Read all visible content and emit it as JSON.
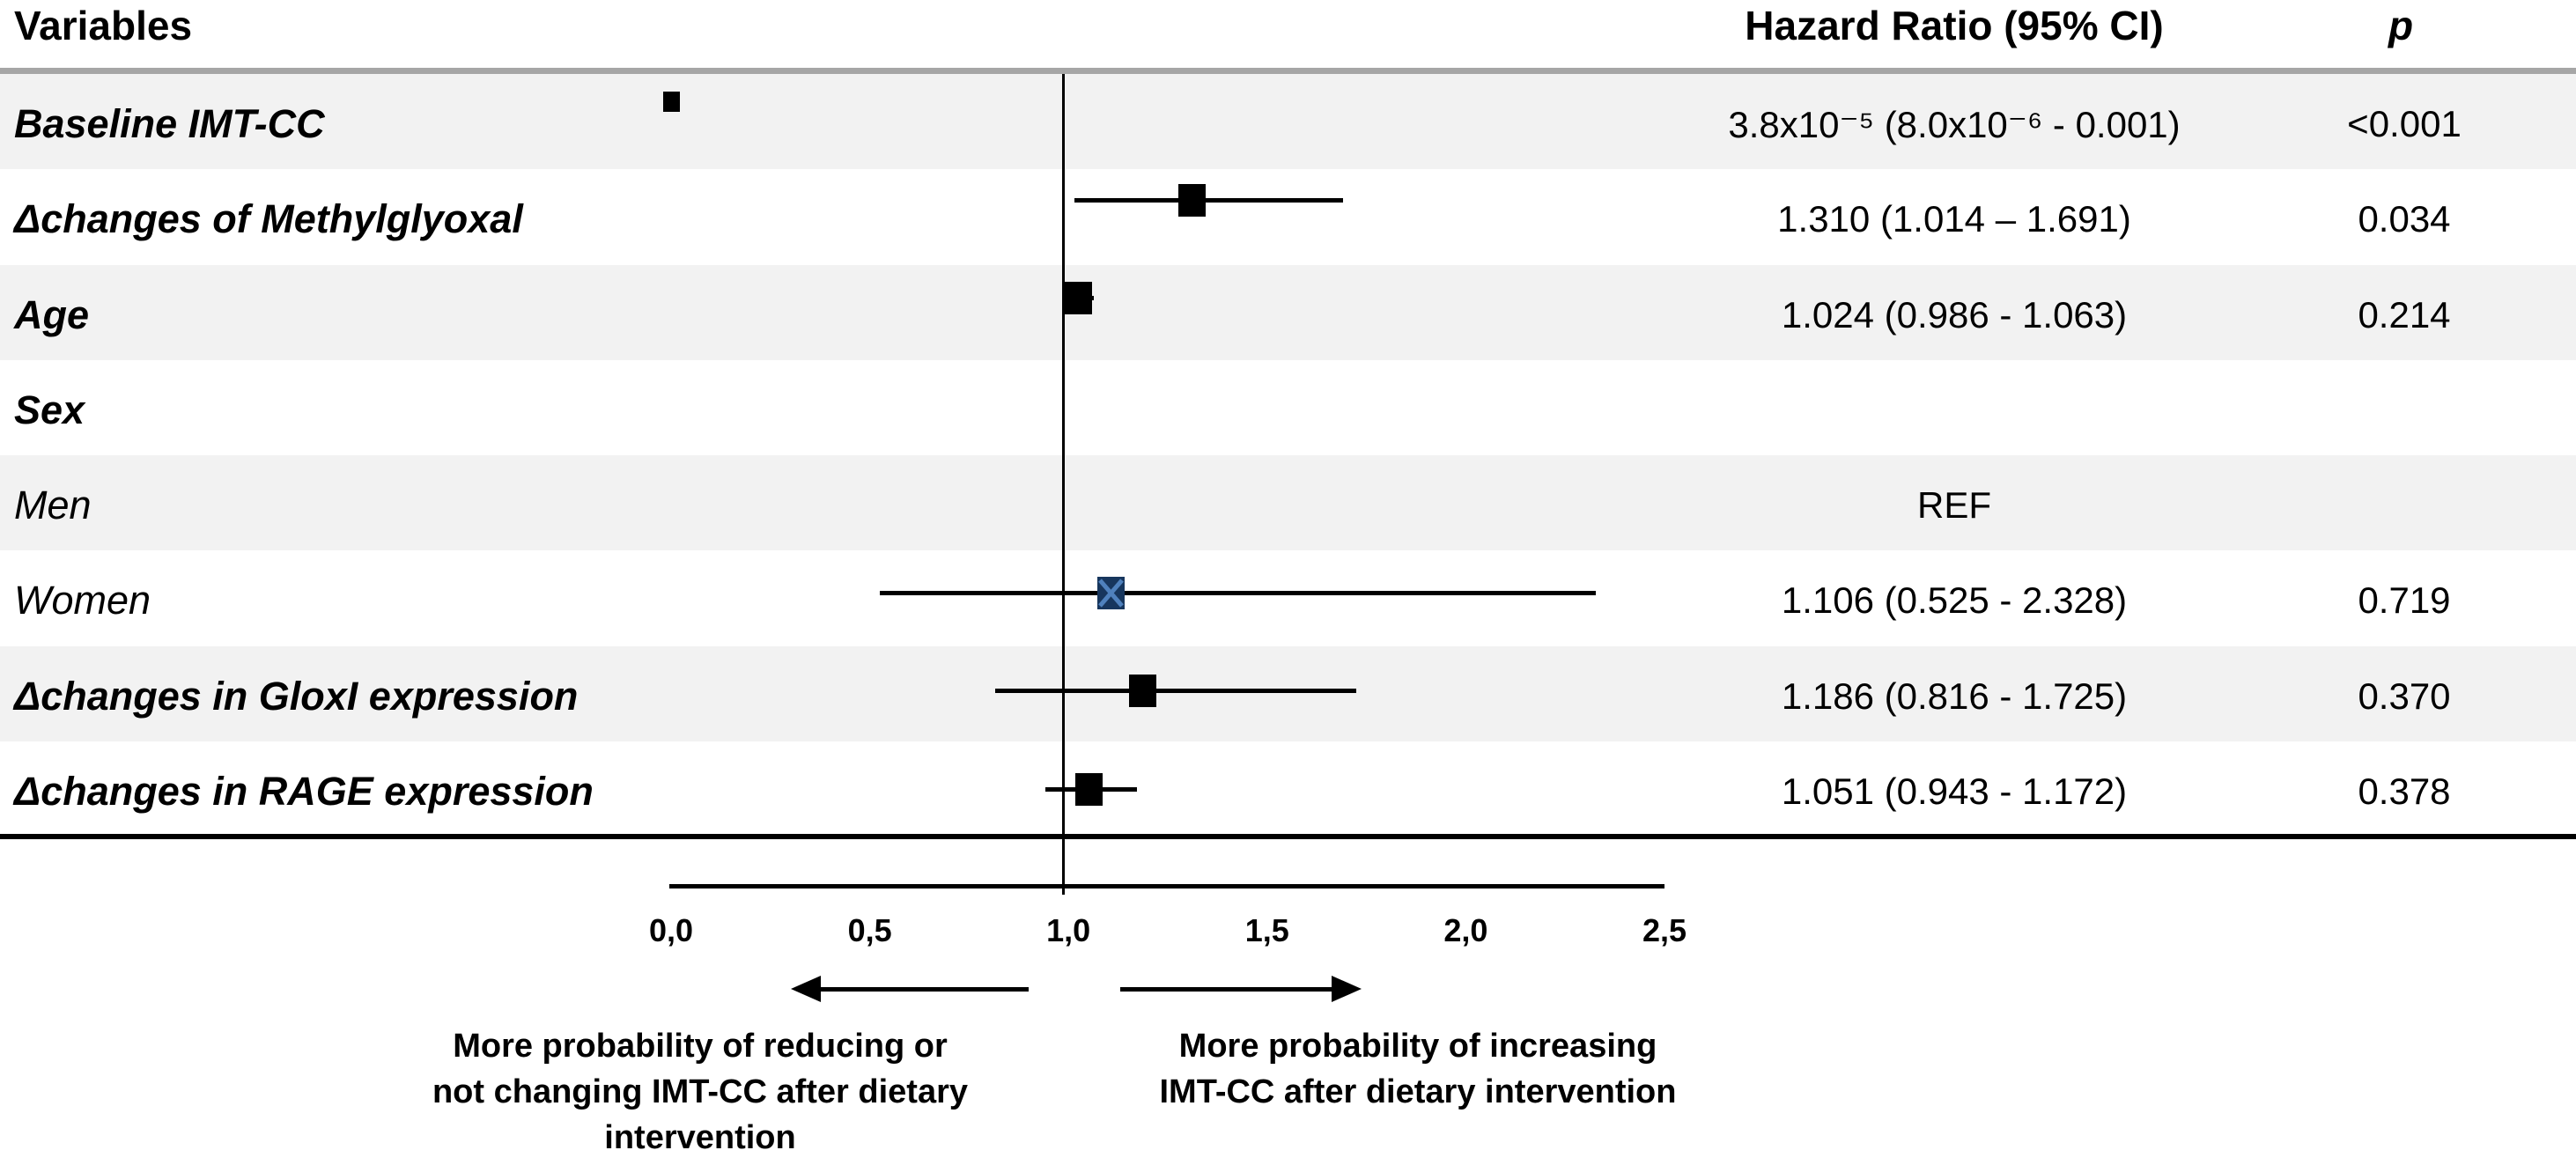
{
  "header": {
    "variables": "Variables",
    "hazard_ratio": "Hazard Ratio (95% CI)",
    "p": "p"
  },
  "colors": {
    "zebra_row": "#f2f2f2",
    "top_rule": "#a6a6a6",
    "line_black": "#000000",
    "marker_black": "#000000",
    "marker_navy": "#17365d",
    "marker_navy_x": "#4f81bd"
  },
  "chart_data": {
    "type": "forest",
    "title": "",
    "xlabel": "",
    "axis": {
      "xlim": [
        0,
        2.5
      ],
      "tick_labels": [
        "0,0",
        "0,5",
        "1,0",
        "1,5",
        "2,0",
        "2,5"
      ],
      "tick_values": [
        0,
        0.5,
        1.0,
        1.5,
        2.0,
        2.5
      ],
      "reference_line": 1.0,
      "grid": false
    },
    "rows": [
      {
        "label": "Baseline IMT-CC",
        "label_style": "bold-italic",
        "zebra": true,
        "estimate": 3.8e-05,
        "ci_low": 8e-06,
        "ci_high": 0.001,
        "marker": "small-square",
        "hr_text": "3.8x10⁻⁵ (8.0x10⁻⁶ - 0.001)",
        "p": "<0.001"
      },
      {
        "label": "Δchanges of Methylglyoxal",
        "label_style": "bold-italic",
        "zebra": false,
        "estimate": 1.31,
        "ci_low": 1.014,
        "ci_high": 1.691,
        "marker": "square",
        "hr_text": "1.310 (1.014 – 1.691)",
        "p": "0.034"
      },
      {
        "label": "Age",
        "label_style": "bold-italic",
        "zebra": true,
        "estimate": 1.024,
        "ci_low": 0.986,
        "ci_high": 1.063,
        "marker": "square",
        "hr_text": "1.024 (0.986 - 1.063)",
        "p": "0.214"
      },
      {
        "label": "Sex",
        "label_style": "bold-italic",
        "zebra": false,
        "estimate": null,
        "ci_low": null,
        "ci_high": null,
        "marker": null,
        "hr_text": "",
        "p": ""
      },
      {
        "label": "Men",
        "label_style": "italic",
        "zebra": true,
        "estimate": null,
        "ci_low": null,
        "ci_high": null,
        "marker": null,
        "hr_text": "REF",
        "p": ""
      },
      {
        "label": "Women",
        "label_style": "italic",
        "zebra": false,
        "estimate": 1.106,
        "ci_low": 0.525,
        "ci_high": 2.328,
        "marker": "x-square",
        "hr_text": "1.106 (0.525 - 2.328)",
        "p": "0.719"
      },
      {
        "label": "Δchanges in GloxI expression",
        "label_style": "bold-italic",
        "zebra": true,
        "estimate": 1.186,
        "ci_low": 0.816,
        "ci_high": 1.725,
        "marker": "square",
        "hr_text": "1.186 (0.816 - 1.725)",
        "p": "0.370"
      },
      {
        "label": "Δchanges in RAGE expression",
        "label_style": "bold-italic",
        "zebra": false,
        "estimate": 1.051,
        "ci_low": 0.943,
        "ci_high": 1.172,
        "marker": "square",
        "hr_text": "1.051 (0.943 - 1.172)",
        "p": "0.378"
      }
    ],
    "annotations": {
      "left_caption_lines": [
        "More probability of reducing or",
        "not changing IMT-CC after dietary",
        "intervention"
      ],
      "right_caption_lines": [
        "More probability of increasing",
        "IMT-CC after dietary intervention"
      ]
    },
    "legend_position": "none"
  }
}
